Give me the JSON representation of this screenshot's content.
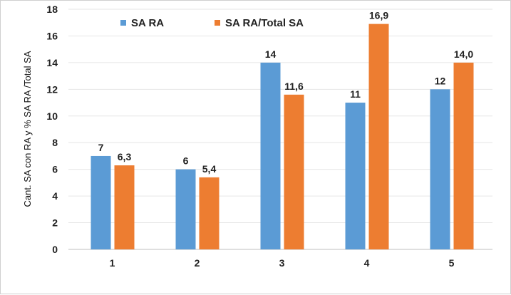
{
  "chart_data": {
    "type": "bar",
    "title": "",
    "xlabel": "",
    "ylabel": "Cant. SA con RA y % SA RA /Total  SA",
    "categories": [
      "1",
      "2",
      "3",
      "4",
      "5"
    ],
    "series": [
      {
        "name": "SA RA",
        "color": "#5b9bd5",
        "values": [
          7,
          6,
          14,
          11,
          12
        ],
        "labels": [
          "7",
          "6",
          "14",
          "11",
          "12"
        ]
      },
      {
        "name": "SA RA/Total  SA",
        "color": "#ed7d31",
        "values": [
          6.3,
          5.4,
          11.6,
          16.9,
          14.0
        ],
        "labels": [
          "6,3",
          "5,4",
          "11,6",
          "16,9",
          "14,0"
        ]
      }
    ],
    "ylim": [
      0,
      18
    ],
    "yticks": [
      "0",
      "2",
      "4",
      "6",
      "8",
      "10",
      "12",
      "14",
      "16",
      "18"
    ],
    "grid": true,
    "legend": "top-center"
  }
}
